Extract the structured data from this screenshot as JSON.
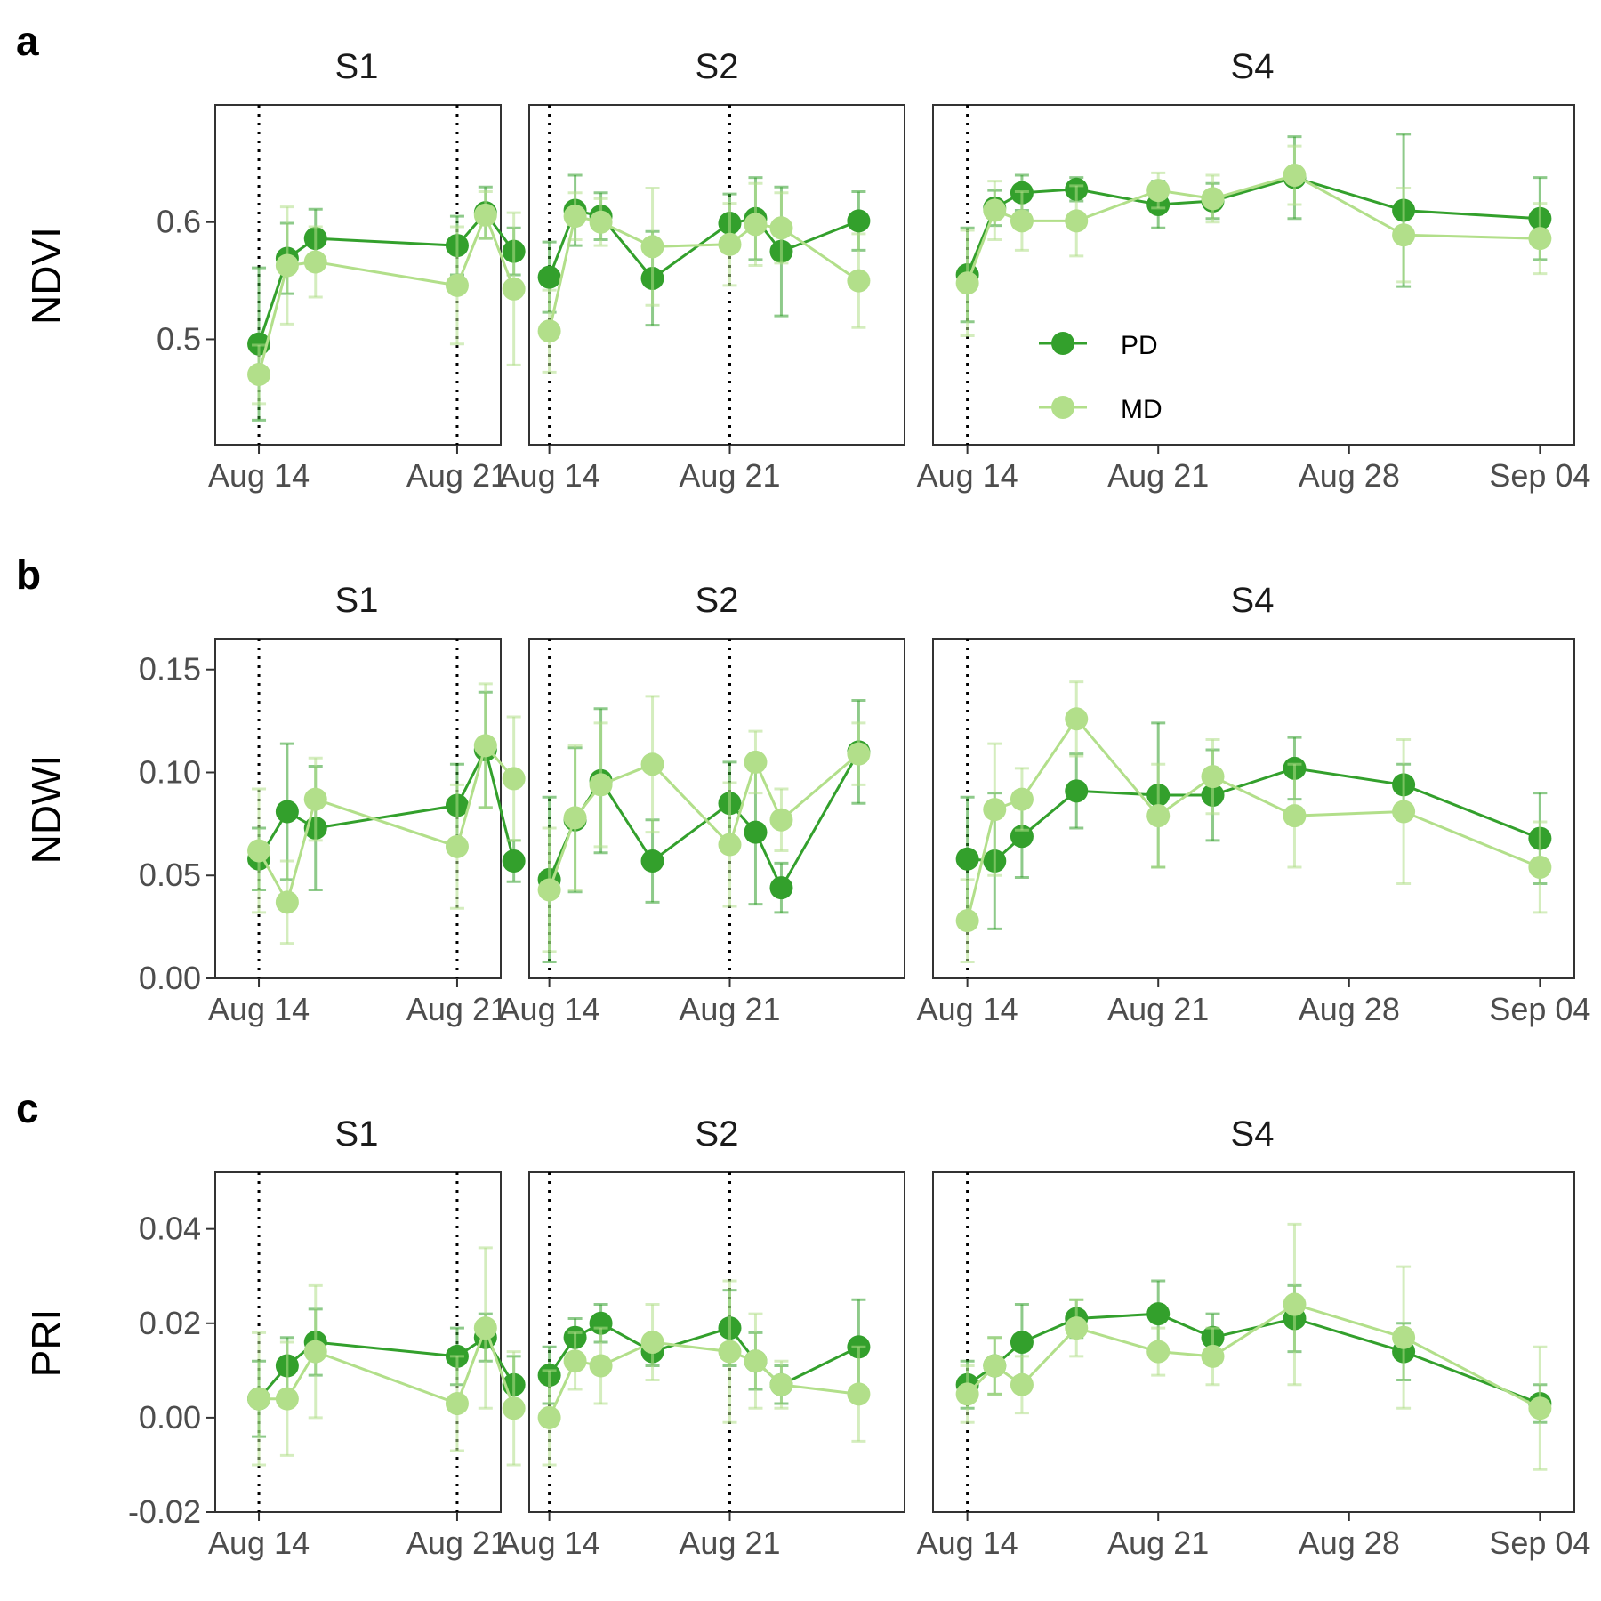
{
  "figure": {
    "legend": [
      {
        "label": "PD",
        "color": "#33a02c"
      },
      {
        "label": "MD",
        "color": "#b2df8a"
      }
    ],
    "rows": [
      {
        "tag": "a",
        "ylabel": "NDVI"
      },
      {
        "tag": "b",
        "ylabel": "NDWI"
      },
      {
        "tag": "c",
        "ylabel": "PRI"
      }
    ],
    "facets": [
      "S1",
      "S2",
      "S4"
    ],
    "colors": {
      "PD": "#33a02c",
      "MD": "#b2df8a",
      "frame": "#333333",
      "tick_text": "#4d4d4d",
      "vline": "#000000"
    }
  },
  "chart_data": [
    {
      "type": "line",
      "metric": "NDVI",
      "ylabel": "NDVI",
      "yticks": [
        0.5,
        0.6
      ],
      "ylim": [
        0.41,
        0.7
      ],
      "panels": [
        {
          "facet": "S1",
          "xlim": [
            "2024-08-13",
            "2024-08-22"
          ],
          "xticks": [
            "Aug 14",
            "Aug 21"
          ],
          "vlines": [
            "2024-08-14",
            "2024-08-21"
          ],
          "series": [
            {
              "name": "PD",
              "x": [
                "2024-08-14",
                "2024-08-15",
                "2024-08-16",
                "2024-08-21",
                "2024-08-22",
                "2024-08-23"
              ],
              "y": [
                0.496,
                0.569,
                0.586,
                0.58,
                0.608,
                0.575
              ],
              "err": [
                0.065,
                0.03,
                0.025,
                0.025,
                0.022,
                0.02
              ]
            },
            {
              "name": "MD",
              "x": [
                "2024-08-14",
                "2024-08-15",
                "2024-08-16",
                "2024-08-21",
                "2024-08-22",
                "2024-08-23"
              ],
              "y": [
                0.47,
                0.563,
                0.566,
                0.546,
                0.606,
                0.543
              ],
              "err": [
                0.025,
                0.05,
                0.03,
                0.05,
                0.02,
                0.065
              ]
            }
          ]
        },
        {
          "facet": "S2",
          "xlim": [
            "2024-08-14",
            "2024-08-27"
          ],
          "xticks": [
            "Aug 14",
            "Aug 21"
          ],
          "vlines": [
            "2024-08-14",
            "2024-08-21"
          ],
          "series": [
            {
              "name": "PD",
              "x": [
                "2024-08-14",
                "2024-08-15",
                "2024-08-16",
                "2024-08-18",
                "2024-08-21",
                "2024-08-22",
                "2024-08-23",
                "2024-08-26"
              ],
              "y": [
                0.553,
                0.61,
                0.605,
                0.552,
                0.599,
                0.603,
                0.575,
                0.601
              ],
              "err": [
                0.03,
                0.03,
                0.02,
                0.04,
                0.025,
                0.035,
                0.055,
                0.025
              ]
            },
            {
              "name": "MD",
              "x": [
                "2024-08-14",
                "2024-08-15",
                "2024-08-16",
                "2024-08-18",
                "2024-08-21",
                "2024-08-22",
                "2024-08-23",
                "2024-08-26"
              ],
              "y": [
                0.507,
                0.605,
                0.6,
                0.579,
                0.581,
                0.598,
                0.595,
                0.55
              ],
              "err": [
                0.035,
                0.02,
                0.02,
                0.05,
                0.035,
                0.035,
                0.03,
                0.04
              ]
            }
          ]
        },
        {
          "facet": "S4",
          "xlim": [
            "2024-08-14",
            "2024-09-04"
          ],
          "xticks": [
            "Aug 14",
            "Aug 21",
            "Aug 28",
            "Sep 04"
          ],
          "vlines": [
            "2024-08-14"
          ],
          "series": [
            {
              "name": "PD",
              "x": [
                "2024-08-14",
                "2024-08-15",
                "2024-08-16",
                "2024-08-18",
                "2024-08-21",
                "2024-08-23",
                "2024-08-26",
                "2024-08-30",
                "2024-09-04"
              ],
              "y": [
                0.555,
                0.612,
                0.625,
                0.628,
                0.615,
                0.618,
                0.638,
                0.61,
                0.603
              ],
              "err": [
                0.04,
                0.015,
                0.015,
                0.01,
                0.02,
                0.015,
                0.035,
                0.065,
                0.035
              ]
            },
            {
              "name": "MD",
              "x": [
                "2024-08-14",
                "2024-08-15",
                "2024-08-16",
                "2024-08-18",
                "2024-08-21",
                "2024-08-23",
                "2024-08-26",
                "2024-08-30",
                "2024-09-04"
              ],
              "y": [
                0.548,
                0.61,
                0.601,
                0.601,
                0.627,
                0.62,
                0.64,
                0.589,
                0.586
              ],
              "err": [
                0.045,
                0.025,
                0.025,
                0.03,
                0.015,
                0.02,
                0.025,
                0.04,
                0.03
              ]
            }
          ]
        }
      ]
    },
    {
      "type": "line",
      "metric": "NDWI",
      "ylabel": "NDWI",
      "yticks": [
        0.0,
        0.05,
        0.1,
        0.15
      ],
      "ylim": [
        0.0,
        0.165
      ],
      "panels": [
        {
          "facet": "S1",
          "xlim": [
            "2024-08-13",
            "2024-08-22"
          ],
          "xticks": [
            "Aug 14",
            "Aug 21"
          ],
          "vlines": [
            "2024-08-14",
            "2024-08-21"
          ],
          "series": [
            {
              "name": "PD",
              "x": [
                "2024-08-14",
                "2024-08-15",
                "2024-08-16",
                "2024-08-21",
                "2024-08-22",
                "2024-08-23"
              ],
              "y": [
                0.058,
                0.081,
                0.073,
                0.084,
                0.111,
                0.057
              ],
              "err": [
                0.015,
                0.033,
                0.03,
                0.02,
                0.028,
                0.01
              ]
            },
            {
              "name": "MD",
              "x": [
                "2024-08-14",
                "2024-08-15",
                "2024-08-16",
                "2024-08-21",
                "2024-08-22",
                "2024-08-23"
              ],
              "y": [
                0.062,
                0.037,
                0.087,
                0.064,
                0.113,
                0.097
              ],
              "err": [
                0.03,
                0.02,
                0.02,
                0.03,
                0.03,
                0.03
              ]
            }
          ]
        },
        {
          "facet": "S2",
          "xlim": [
            "2024-08-14",
            "2024-08-27"
          ],
          "xticks": [
            "Aug 14",
            "Aug 21"
          ],
          "vlines": [
            "2024-08-14",
            "2024-08-21"
          ],
          "series": [
            {
              "name": "PD",
              "x": [
                "2024-08-14",
                "2024-08-15",
                "2024-08-16",
                "2024-08-18",
                "2024-08-21",
                "2024-08-22",
                "2024-08-23",
                "2024-08-26"
              ],
              "y": [
                0.048,
                0.077,
                0.096,
                0.057,
                0.085,
                0.071,
                0.044,
                0.11
              ],
              "err": [
                0.04,
                0.035,
                0.035,
                0.02,
                0.02,
                0.035,
                0.012,
                0.025
              ]
            },
            {
              "name": "MD",
              "x": [
                "2024-08-14",
                "2024-08-15",
                "2024-08-16",
                "2024-08-18",
                "2024-08-21",
                "2024-08-22",
                "2024-08-23",
                "2024-08-26"
              ],
              "y": [
                0.043,
                0.078,
                0.094,
                0.104,
                0.065,
                0.105,
                0.077,
                0.109
              ],
              "err": [
                0.03,
                0.035,
                0.03,
                0.033,
                0.03,
                0.015,
                0.015,
                0.015
              ]
            }
          ]
        },
        {
          "facet": "S4",
          "xlim": [
            "2024-08-14",
            "2024-09-04"
          ],
          "xticks": [
            "Aug 14",
            "Aug 21",
            "Aug 28",
            "Sep 04"
          ],
          "vlines": [
            "2024-08-14"
          ],
          "series": [
            {
              "name": "PD",
              "x": [
                "2024-08-14",
                "2024-08-15",
                "2024-08-16",
                "2024-08-18",
                "2024-08-21",
                "2024-08-23",
                "2024-08-26",
                "2024-08-30",
                "2024-09-04"
              ],
              "y": [
                0.058,
                0.057,
                0.069,
                0.091,
                0.089,
                0.089,
                0.102,
                0.094,
                0.068
              ],
              "err": [
                0.03,
                0.033,
                0.02,
                0.018,
                0.035,
                0.022,
                0.015,
                0.01,
                0.022
              ]
            },
            {
              "name": "MD",
              "x": [
                "2024-08-14",
                "2024-08-15",
                "2024-08-16",
                "2024-08-18",
                "2024-08-21",
                "2024-08-23",
                "2024-08-26",
                "2024-08-30",
                "2024-09-04"
              ],
              "y": [
                0.028,
                0.082,
                0.087,
                0.126,
                0.079,
                0.098,
                0.079,
                0.081,
                0.054
              ],
              "err": [
                0.02,
                0.032,
                0.015,
                0.018,
                0.025,
                0.018,
                0.025,
                0.035,
                0.022
              ]
            }
          ]
        }
      ]
    },
    {
      "type": "line",
      "metric": "PRI",
      "ylabel": "PRI",
      "yticks": [
        -0.02,
        0.0,
        0.02,
        0.04
      ],
      "ylim": [
        -0.02,
        0.052
      ],
      "panels": [
        {
          "facet": "S1",
          "xlim": [
            "2024-08-13",
            "2024-08-22"
          ],
          "xticks": [
            "Aug 14",
            "Aug 21"
          ],
          "vlines": [
            "2024-08-14",
            "2024-08-21"
          ],
          "series": [
            {
              "name": "PD",
              "x": [
                "2024-08-14",
                "2024-08-15",
                "2024-08-16",
                "2024-08-21",
                "2024-08-22",
                "2024-08-23"
              ],
              "y": [
                0.004,
                0.011,
                0.016,
                0.013,
                0.017,
                0.007
              ],
              "err": [
                0.008,
                0.006,
                0.007,
                0.006,
                0.005,
                0.006
              ]
            },
            {
              "name": "MD",
              "x": [
                "2024-08-14",
                "2024-08-15",
                "2024-08-16",
                "2024-08-21",
                "2024-08-22",
                "2024-08-23"
              ],
              "y": [
                0.004,
                0.004,
                0.014,
                0.003,
                0.019,
                0.002
              ],
              "err": [
                0.014,
                0.012,
                0.014,
                0.01,
                0.017,
                0.012
              ]
            }
          ]
        },
        {
          "facet": "S2",
          "xlim": [
            "2024-08-14",
            "2024-08-27"
          ],
          "xticks": [
            "Aug 14",
            "Aug 21"
          ],
          "vlines": [
            "2024-08-14",
            "2024-08-21"
          ],
          "series": [
            {
              "name": "PD",
              "x": [
                "2024-08-14",
                "2024-08-15",
                "2024-08-16",
                "2024-08-18",
                "2024-08-21",
                "2024-08-22",
                "2024-08-23",
                "2024-08-26"
              ],
              "y": [
                0.009,
                0.017,
                0.02,
                0.014,
                0.019,
                0.012,
                0.007,
                0.015
              ],
              "err": [
                0.006,
                0.004,
                0.004,
                0.003,
                0.008,
                0.006,
                0.004,
                0.01
              ]
            },
            {
              "name": "MD",
              "x": [
                "2024-08-14",
                "2024-08-15",
                "2024-08-16",
                "2024-08-18",
                "2024-08-21",
                "2024-08-22",
                "2024-08-23",
                "2024-08-26"
              ],
              "y": [
                0.0,
                0.012,
                0.011,
                0.016,
                0.014,
                0.012,
                0.007,
                0.005
              ],
              "err": [
                0.01,
                0.006,
                0.008,
                0.008,
                0.015,
                0.01,
                0.005,
                0.01
              ]
            }
          ]
        },
        {
          "facet": "S4",
          "xlim": [
            "2024-08-14",
            "2024-09-04"
          ],
          "xticks": [
            "Aug 14",
            "Aug 21",
            "Aug 28",
            "Sep 04"
          ],
          "vlines": [
            "2024-08-14"
          ],
          "series": [
            {
              "name": "PD",
              "x": [
                "2024-08-14",
                "2024-08-15",
                "2024-08-16",
                "2024-08-18",
                "2024-08-21",
                "2024-08-23",
                "2024-08-26",
                "2024-08-30",
                "2024-09-04"
              ],
              "y": [
                0.007,
                0.011,
                0.016,
                0.021,
                0.022,
                0.017,
                0.021,
                0.014,
                0.003
              ],
              "err": [
                0.005,
                0.006,
                0.008,
                0.004,
                0.007,
                0.005,
                0.007,
                0.006,
                0.004
              ]
            },
            {
              "name": "MD",
              "x": [
                "2024-08-14",
                "2024-08-15",
                "2024-08-16",
                "2024-08-18",
                "2024-08-21",
                "2024-08-23",
                "2024-08-26",
                "2024-08-30",
                "2024-09-04"
              ],
              "y": [
                0.005,
                0.011,
                0.007,
                0.019,
                0.014,
                0.013,
                0.024,
                0.017,
                0.002
              ],
              "err": [
                0.006,
                0.006,
                0.006,
                0.006,
                0.005,
                0.006,
                0.017,
                0.015,
                0.013
              ]
            }
          ]
        }
      ]
    }
  ]
}
